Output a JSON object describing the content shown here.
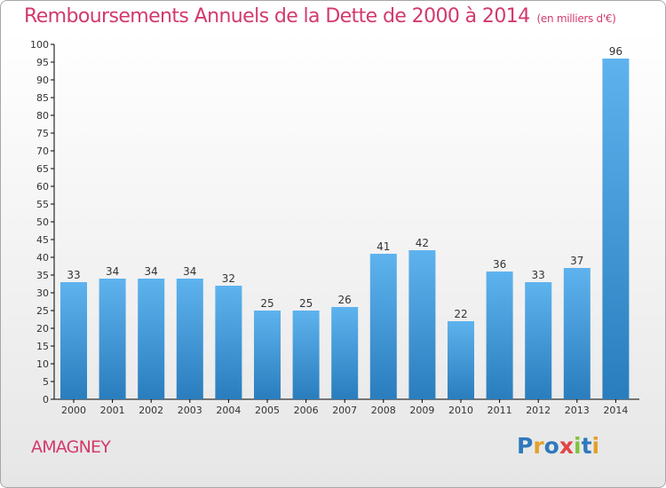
{
  "header": {
    "title": "Remboursements Annuels de la Dette de 2000 à 2014",
    "subtitle": "(en milliers d'€)"
  },
  "footer": {
    "commune": "AMAGNEY",
    "logo": "Proxiti"
  },
  "colors": {
    "title": "#d23a6b",
    "bar_top": "#5eb3ee",
    "bar_bottom": "#2a7dbd",
    "logo_letters": [
      "#2f78bd",
      "#e2a12b",
      "#2f78bd",
      "#e14545",
      "#82c341",
      "#2f78bd",
      "#e2a12b"
    ]
  },
  "chart_data": {
    "type": "bar",
    "categories": [
      "2000",
      "2001",
      "2002",
      "2003",
      "2004",
      "2005",
      "2006",
      "2007",
      "2008",
      "2009",
      "2010",
      "2011",
      "2012",
      "2013",
      "2014"
    ],
    "values": [
      33,
      34,
      34,
      34,
      32,
      25,
      25,
      26,
      41,
      42,
      22,
      36,
      33,
      37,
      96
    ],
    "ylim": [
      0,
      100
    ],
    "yticks": [
      0,
      5,
      10,
      15,
      20,
      25,
      30,
      35,
      40,
      45,
      50,
      55,
      60,
      65,
      70,
      75,
      80,
      85,
      90,
      95,
      100
    ],
    "grid": false,
    "data_labels": true
  }
}
